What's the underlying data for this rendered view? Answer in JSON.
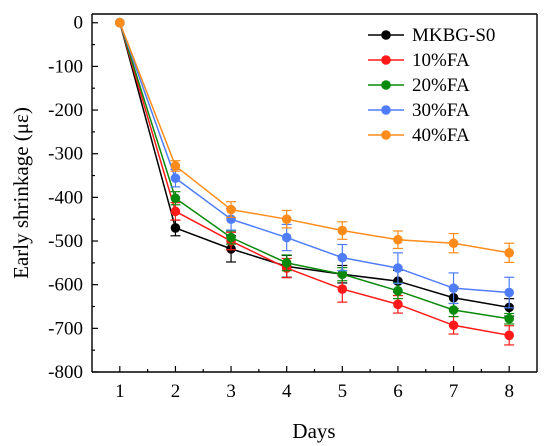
{
  "chart_data": {
    "type": "line",
    "xlabel": "Days",
    "ylabel": "Early shrinkage (με)",
    "xlim": [
      0.5,
      8.5
    ],
    "ylim": [
      -800,
      20
    ],
    "x_ticks": [
      1,
      2,
      3,
      4,
      5,
      6,
      7,
      8
    ],
    "y_ticks": [
      0,
      -100,
      -200,
      -300,
      -400,
      -500,
      -600,
      -700,
      -800
    ],
    "legend_position": "top-right",
    "grid": false,
    "x": [
      1,
      2,
      3,
      4,
      5,
      6,
      7,
      8
    ],
    "series": [
      {
        "name": "MKBG-S0",
        "color": "#000000",
        "values": [
          0,
          -470,
          -518,
          -558,
          -576,
          -592,
          -630,
          -652
        ],
        "errors": [
          0,
          18,
          30,
          25,
          20,
          25,
          25,
          20
        ]
      },
      {
        "name": "10%FA",
        "color": "#ff1a1a",
        "values": [
          0,
          -432,
          -500,
          -562,
          -610,
          -645,
          -693,
          -716
        ],
        "errors": [
          0,
          20,
          20,
          22,
          30,
          20,
          20,
          22
        ]
      },
      {
        "name": "20%FA",
        "color": "#0a8a0a",
        "values": [
          0,
          -402,
          -492,
          -550,
          -576,
          -614,
          -658,
          -678
        ],
        "errors": [
          0,
          15,
          15,
          18,
          15,
          18,
          15,
          12
        ]
      },
      {
        "name": "30%FA",
        "color": "#4f7dfa",
        "values": [
          0,
          -356,
          -450,
          -492,
          -538,
          -562,
          -608,
          -618
        ],
        "errors": [
          0,
          20,
          25,
          30,
          30,
          35,
          35,
          35
        ]
      },
      {
        "name": "40%FA",
        "color": "#ff8c1a",
        "values": [
          0,
          -328,
          -428,
          -450,
          -476,
          -497,
          -505,
          -527
        ],
        "errors": [
          0,
          12,
          18,
          20,
          20,
          20,
          22,
          22
        ]
      }
    ]
  }
}
